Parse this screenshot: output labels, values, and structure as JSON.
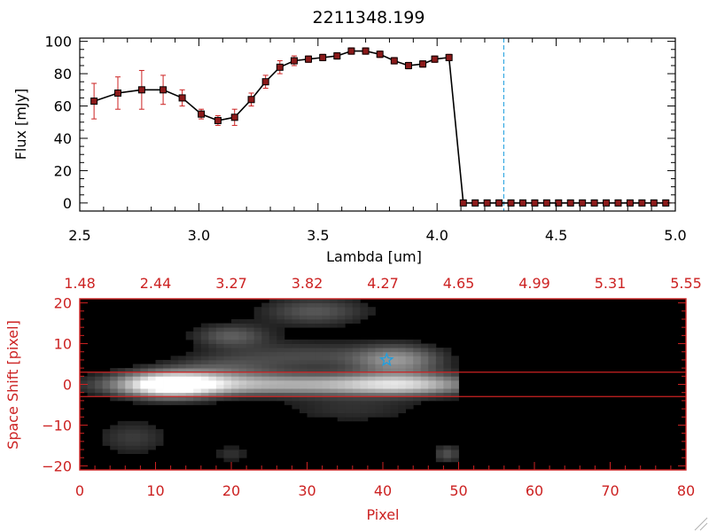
{
  "colors": {
    "axis_top": "#000000",
    "series_line": "#000000",
    "marker_fill": "#8b1a1a",
    "error_bar": "#cc2222",
    "marker_line": "#1f9fdf",
    "bottom_axis": "#cc2222",
    "image_bg": "#000000"
  },
  "chart_data": [
    {
      "type": "line",
      "title": "2211348.199",
      "xlabel": "Lambda [um]",
      "ylabel": "Flux [mJy]",
      "xlim": [
        2.5,
        5.0
      ],
      "ylim": [
        -5,
        102
      ],
      "xticks": [
        2.5,
        3.0,
        3.5,
        4.0,
        4.5,
        5.0
      ],
      "xtick_labels": [
        "2.5",
        "3.0",
        "3.5",
        "4.0",
        "4.5",
        "5.0"
      ],
      "yticks": [
        0,
        20,
        40,
        60,
        80,
        100
      ],
      "ytick_labels": [
        "0",
        "20",
        "40",
        "60",
        "80",
        "100"
      ],
      "grid": false,
      "vertical_marker_x": 4.28,
      "series": [
        {
          "x": [
            2.56,
            2.66,
            2.76,
            2.85,
            2.93,
            3.01,
            3.08,
            3.15,
            3.22,
            3.28,
            3.34,
            3.4,
            3.46,
            3.52,
            3.58,
            3.64,
            3.7,
            3.76,
            3.82,
            3.88,
            3.94,
            3.99,
            4.05
          ],
          "y": [
            63,
            68,
            70,
            70,
            65,
            55,
            51,
            53,
            64,
            75,
            84,
            88,
            89,
            90,
            91,
            94,
            94,
            92,
            88,
            85,
            86,
            89,
            90
          ],
          "error": [
            11,
            10,
            12,
            9,
            5,
            3,
            3,
            5,
            4,
            4,
            4,
            3,
            2,
            2,
            2,
            2,
            2,
            2,
            2,
            2,
            2,
            2,
            2
          ]
        },
        {
          "x": [
            4.11,
            4.16,
            4.21,
            4.26,
            4.31,
            4.36,
            4.41,
            4.46,
            4.51,
            4.56,
            4.61,
            4.66,
            4.71,
            4.76,
            4.81,
            4.86,
            4.91,
            4.96
          ],
          "y": [
            0,
            0,
            0,
            0,
            0,
            0,
            0,
            0,
            0,
            0,
            0,
            0,
            0,
            0,
            0,
            0,
            0,
            0
          ]
        }
      ]
    },
    {
      "type": "heatmap",
      "xlabel": "Pixel",
      "ylabel": "Space Shift [pixel]",
      "xlim": [
        0,
        80
      ],
      "ylim": [
        -21,
        21
      ],
      "xticks": [
        0,
        10,
        20,
        30,
        40,
        50,
        60,
        70,
        80
      ],
      "xtick_labels": [
        "0",
        "10",
        "20",
        "30",
        "40",
        "50",
        "60",
        "70",
        "80"
      ],
      "yticks": [
        -20,
        -10,
        0,
        10,
        20
      ],
      "ytick_labels": [
        "−20",
        "−10",
        "0",
        "10",
        "20"
      ],
      "top_axis_ticks": [
        0,
        10,
        20,
        30,
        40,
        50,
        60,
        70,
        80
      ],
      "top_axis_labels": [
        "1.48",
        "2.44",
        "3.27",
        "3.82",
        "4.27",
        "4.65",
        "4.99",
        "5.31",
        "5.55"
      ],
      "extraction_aperture_y": [
        -3,
        3
      ],
      "star_marker": {
        "x": 40.5,
        "y": 6
      },
      "emission_blobs": [
        {
          "x": 12,
          "y": 0,
          "sx": 4.5,
          "sy": 2.2,
          "amp": 1.0
        },
        {
          "x": 26,
          "y": 0,
          "sx": 14,
          "sy": 1.8,
          "amp": 0.62
        },
        {
          "x": 43,
          "y": 0,
          "sx": 6,
          "sy": 1.8,
          "amp": 0.55
        },
        {
          "x": 42,
          "y": 6,
          "sx": 4,
          "sy": 2.5,
          "amp": 0.5
        },
        {
          "x": 30,
          "y": 7,
          "sx": 7,
          "sy": 2.5,
          "amp": 0.22
        },
        {
          "x": 20,
          "y": 12,
          "sx": 3.5,
          "sy": 2,
          "amp": 0.3
        },
        {
          "x": 31,
          "y": 18,
          "sx": 5,
          "sy": 2.5,
          "amp": 0.28
        },
        {
          "x": 19,
          "y": 4,
          "sx": 5,
          "sy": 2.5,
          "amp": 0.22
        },
        {
          "x": 36,
          "y": -6,
          "sx": 7,
          "sy": 2.5,
          "amp": 0.14
        },
        {
          "x": 7,
          "y": -13,
          "sx": 3.5,
          "sy": 3,
          "amp": 0.18
        },
        {
          "x": 48.5,
          "y": -17,
          "sx": 1.3,
          "sy": 1.5,
          "amp": 0.26
        },
        {
          "x": 20,
          "y": -17,
          "sx": 1.6,
          "sy": 1.4,
          "amp": 0.15
        }
      ]
    }
  ]
}
